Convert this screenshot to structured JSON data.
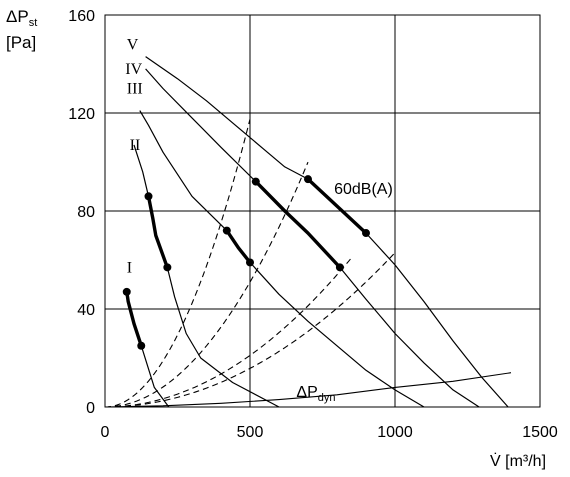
{
  "chart_data": {
    "type": "line",
    "ylabel": "ΔP",
    "ylabel_sub": "st",
    "yunit": "[Pa]",
    "xlabel": "V̇ [m³/h]",
    "xlim": [
      0,
      1500
    ],
    "ylim": [
      0,
      160
    ],
    "grid": true,
    "xticks": [
      0,
      500,
      1000,
      1500
    ],
    "yticks": [
      0,
      40,
      80,
      120,
      160
    ],
    "series": [
      {
        "name": "I",
        "label_at": [
          75,
          55
        ],
        "points": [
          [
            75,
            48
          ],
          [
            80,
            43
          ],
          [
            100,
            34
          ],
          [
            125,
            25
          ],
          [
            170,
            8
          ],
          [
            220,
            0
          ]
        ]
      },
      {
        "name": "II",
        "label_at": [
          85,
          105
        ],
        "points": [
          [
            100,
            107
          ],
          [
            130,
            96
          ],
          [
            150,
            86
          ],
          [
            175,
            70
          ],
          [
            215,
            57
          ],
          [
            240,
            45
          ],
          [
            280,
            30
          ],
          [
            330,
            20
          ],
          [
            440,
            10
          ],
          [
            600,
            0
          ]
        ]
      },
      {
        "name": "III",
        "label_at": [
          75,
          128
        ],
        "points": [
          [
            120,
            121
          ],
          [
            150,
            115
          ],
          [
            200,
            104
          ],
          [
            300,
            86
          ],
          [
            420,
            72
          ],
          [
            500,
            59
          ],
          [
            600,
            46
          ],
          [
            700,
            35
          ],
          [
            800,
            25
          ],
          [
            900,
            15
          ],
          [
            1000,
            7
          ],
          [
            1100,
            0
          ]
        ]
      },
      {
        "name": "IV",
        "label_at": [
          70,
          136
        ],
        "points": [
          [
            140,
            138
          ],
          [
            200,
            130
          ],
          [
            300,
            118
          ],
          [
            400,
            106
          ],
          [
            520,
            92
          ],
          [
            620,
            80
          ],
          [
            700,
            71
          ],
          [
            810,
            57
          ],
          [
            900,
            44
          ],
          [
            1000,
            30
          ],
          [
            1100,
            18
          ],
          [
            1200,
            7
          ],
          [
            1290,
            0
          ]
        ]
      },
      {
        "name": "V",
        "label_at": [
          75,
          146
        ],
        "points": [
          [
            140,
            143
          ],
          [
            250,
            134
          ],
          [
            350,
            125
          ],
          [
            450,
            115
          ],
          [
            550,
            105
          ],
          [
            620,
            98
          ],
          [
            700,
            93
          ],
          [
            800,
            82
          ],
          [
            900,
            71
          ],
          [
            1000,
            58
          ],
          [
            1100,
            43
          ],
          [
            1200,
            27
          ],
          [
            1300,
            12
          ],
          [
            1390,
            0
          ]
        ]
      }
    ],
    "operating_segments": [
      {
        "series": "I",
        "points": [
          [
            75,
            47
          ],
          [
            80,
            43
          ],
          [
            100,
            34
          ],
          [
            125,
            25
          ]
        ]
      },
      {
        "series": "II",
        "points": [
          [
            150,
            86
          ],
          [
            165,
            77
          ],
          [
            175,
            70
          ],
          [
            215,
            57
          ]
        ]
      },
      {
        "series": "III",
        "points": [
          [
            420,
            72
          ],
          [
            460,
            65
          ],
          [
            500,
            59
          ]
        ]
      },
      {
        "series": "IV",
        "points": [
          [
            520,
            92
          ],
          [
            620,
            80
          ],
          [
            700,
            71
          ],
          [
            810,
            57
          ]
        ]
      },
      {
        "series": "V",
        "points": [
          [
            700,
            93
          ],
          [
            800,
            82
          ],
          [
            900,
            71
          ]
        ]
      }
    ],
    "system_curves": [
      {
        "k": 0.00047,
        "x_end": 500
      },
      {
        "k": 0.000204,
        "x_end": 700
      },
      {
        "k": 8.43e-05,
        "x_end": 850
      },
      {
        "k": 6.3e-05,
        "x_end": 1000
      }
    ],
    "dynamic_pressure": {
      "points": [
        [
          0,
          0
        ],
        [
          200,
          0.5
        ],
        [
          400,
          1.5
        ],
        [
          600,
          3
        ],
        [
          800,
          5
        ],
        [
          1000,
          8
        ],
        [
          1200,
          10.5
        ],
        [
          1400,
          14
        ]
      ]
    },
    "annotations": [
      {
        "text": "60dB(A)",
        "at": [
          790,
          87
        ]
      },
      {
        "text": "ΔP",
        "sub": "dyn",
        "at": [
          660,
          4
        ]
      }
    ]
  }
}
